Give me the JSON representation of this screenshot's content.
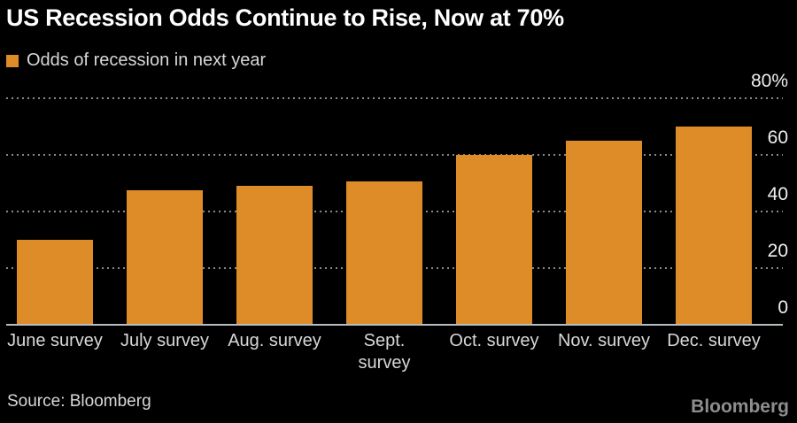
{
  "title": "US Recession Odds Continue to Rise, Now at 70%",
  "legend": {
    "label": "Odds of recession in next year",
    "swatch_color": "#de8c28"
  },
  "source_note": "Source: Bloomberg",
  "brand_logo": "Bloomberg",
  "colors": {
    "background": "#000000",
    "bar": "#de8c28",
    "title": "#ffffff",
    "text": "#d8d8d8",
    "tick": "#efefef",
    "grid": "#8a8a8a",
    "baseline": "#b6bdc3",
    "brand": "#8e8e8e"
  },
  "chart_data": {
    "type": "bar",
    "title": "US Recession Odds Continue to Rise, Now at 70%",
    "legend_entries": [
      "Odds of recession in next year"
    ],
    "legend_position": "top-left",
    "categories": [
      "June survey",
      "July survey",
      "Aug. survey",
      "Sept.\nsurvey",
      "Oct. survey",
      "Nov. survey",
      "Dec. survey"
    ],
    "values": [
      30,
      47.5,
      49,
      50.5,
      60,
      65,
      70
    ],
    "xlabel": "",
    "ylabel": "",
    "ylim": [
      0,
      80
    ],
    "yticks": [
      {
        "label": "80%",
        "value": 80
      },
      {
        "label": "60",
        "value": 60
      },
      {
        "label": "40",
        "value": 40
      },
      {
        "label": "20",
        "value": 20
      },
      {
        "label": "0",
        "value": 0
      }
    ],
    "grid": "horizontal-dotted",
    "tick_side": "right"
  }
}
